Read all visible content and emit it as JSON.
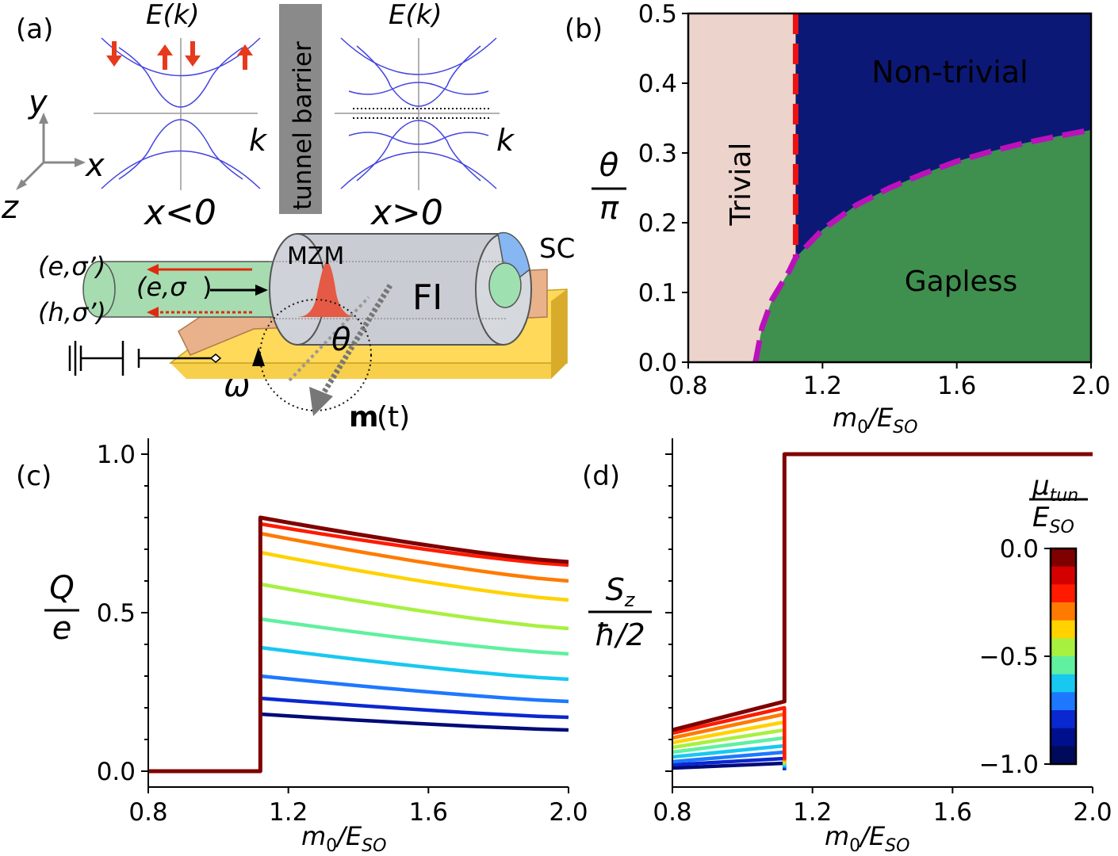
{
  "panel_a": {
    "label": "(a)",
    "band_axis_left": "E(k)",
    "band_axis_right": "E(k)",
    "k_left": "k",
    "k_right": "k",
    "region_left": "x<0",
    "region_right": "x>0",
    "barrier_text": "tunnel barrier",
    "axis_x": "x",
    "axis_y": "y",
    "axis_z": "z",
    "mzm": "MZM",
    "sc": "SC",
    "fi": "FI",
    "lead_out_e": "(e,σ’)",
    "lead_in_e": "(e,σ",
    "lead_out_h": "(h,σ’)",
    "theta": "θ",
    "omega": "ω",
    "m_bold": "m",
    "m_time": "(t)"
  },
  "chart_data": [
    {
      "panel": "(b)",
      "type": "heatmap",
      "xlabel_main": "m",
      "xlabel_sub": "0",
      "xlabel_div": "/E",
      "xlabel_sub2": "SO",
      "ylabel_num": "θ",
      "ylabel_den": "π",
      "xlim": [
        0.8,
        2.0
      ],
      "ylim": [
        0.0,
        0.5
      ],
      "xticks": [
        "0.8",
        "1.2",
        "1.6",
        "2.0"
      ],
      "yticks": [
        "0.0",
        "0.1",
        "0.2",
        "0.3",
        "0.4",
        "0.5"
      ],
      "regions": {
        "trivial": {
          "label": "Trivial",
          "color": "#ecd3cb"
        },
        "nontrivial": {
          "label": "Non-trivial",
          "color": "#0c1876",
          "label_color": "#f2ee1c"
        },
        "gapless": {
          "label": "Gapless",
          "color": "#3f8f4e"
        }
      },
      "topological_boundary_x": 1.12,
      "gapless_boundary": {
        "x": [
          1.0,
          1.02,
          1.05,
          1.1,
          1.12,
          1.2,
          1.3,
          1.4,
          1.5,
          1.6,
          1.7,
          1.8,
          1.9,
          2.0
        ],
        "y": [
          0.0,
          0.05,
          0.09,
          0.13,
          0.15,
          0.19,
          0.225,
          0.25,
          0.27,
          0.288,
          0.302,
          0.314,
          0.324,
          0.333
        ]
      },
      "boundary_colors": {
        "vertical": "#ee1111",
        "curve": "#bb11bb"
      }
    },
    {
      "panel": "(c)",
      "type": "line",
      "xlabel_main": "m",
      "xlabel_sub": "0",
      "xlabel_div": "/E",
      "xlabel_sub2": "SO",
      "ylabel_num": "Q",
      "ylabel_den": "e",
      "xlim": [
        0.8,
        2.0
      ],
      "ylim": [
        -0.05,
        1.05
      ],
      "xticks": [
        "0.8",
        "1.2",
        "1.6",
        "2.0"
      ],
      "yticks": [
        "0.0",
        "0.5",
        "1.0"
      ],
      "transition_x": 1.12,
      "series": [
        {
          "mu": 0.0,
          "color": "#7f0000",
          "start": 0.8,
          "end": 0.66
        },
        {
          "mu": -0.1,
          "color": "#ff1a00",
          "start": 0.78,
          "end": 0.65
        },
        {
          "mu": -0.2,
          "color": "#ff7a00",
          "start": 0.75,
          "end": 0.6
        },
        {
          "mu": -0.3,
          "color": "#ffd200",
          "start": 0.69,
          "end": 0.54
        },
        {
          "mu": -0.4,
          "color": "#a8f040",
          "start": 0.59,
          "end": 0.45
        },
        {
          "mu": -0.5,
          "color": "#60f0a0",
          "start": 0.48,
          "end": 0.37
        },
        {
          "mu": -0.6,
          "color": "#18c8f0",
          "start": 0.39,
          "end": 0.29
        },
        {
          "mu": -0.7,
          "color": "#1e78ff",
          "start": 0.3,
          "end": 0.22
        },
        {
          "mu": -0.8,
          "color": "#0a28d0",
          "start": 0.23,
          "end": 0.17
        },
        {
          "mu": -0.9,
          "color": "#000a78",
          "start": 0.18,
          "end": 0.13
        }
      ]
    },
    {
      "panel": "(d)",
      "type": "line",
      "xlabel_main": "m",
      "xlabel_sub": "0",
      "xlabel_div": "/E",
      "xlabel_sub2": "SO",
      "ylabel_num": "S",
      "ylabel_num_sub": "z",
      "ylabel_den": "ħ/2",
      "xlim": [
        0.8,
        2.0
      ],
      "ylim": [
        -0.05,
        1.05
      ],
      "xticks": [
        "0.8",
        "1.2",
        "1.6",
        "2.0"
      ],
      "transition_x": 1.12,
      "plateau_value": 1.0,
      "series": [
        {
          "mu": 0.0,
          "color": "#7f0000",
          "start": 0.13,
          "end": 0.22
        },
        {
          "mu": -0.1,
          "color": "#ff1a00",
          "start": 0.12,
          "end": 0.2
        },
        {
          "mu": -0.2,
          "color": "#ff7a00",
          "start": 0.105,
          "end": 0.18
        },
        {
          "mu": -0.3,
          "color": "#ffd200",
          "start": 0.09,
          "end": 0.155
        },
        {
          "mu": -0.4,
          "color": "#a8f040",
          "start": 0.075,
          "end": 0.13
        },
        {
          "mu": -0.5,
          "color": "#60f0a0",
          "start": 0.06,
          "end": 0.105
        },
        {
          "mu": -0.6,
          "color": "#18c8f0",
          "start": 0.045,
          "end": 0.08
        },
        {
          "mu": -0.7,
          "color": "#1e78ff",
          "start": 0.03,
          "end": 0.06
        },
        {
          "mu": -0.8,
          "color": "#0a28d0",
          "start": 0.02,
          "end": 0.04
        },
        {
          "mu": -0.9,
          "color": "#000a78",
          "start": 0.01,
          "end": 0.025
        }
      ],
      "colorbar": {
        "label_num": "μ",
        "label_num_sub": "tun",
        "label_den": "E",
        "label_den_sub": "SO",
        "ticks": [
          "0.0",
          "−0.5",
          "−1.0"
        ],
        "colors": [
          "#7f0000",
          "#d40000",
          "#ff1a00",
          "#ff7a00",
          "#ffd200",
          "#a8f040",
          "#60f0a0",
          "#18c8f0",
          "#1e78ff",
          "#0a28d0",
          "#00108c",
          "#000a5a"
        ]
      }
    }
  ]
}
